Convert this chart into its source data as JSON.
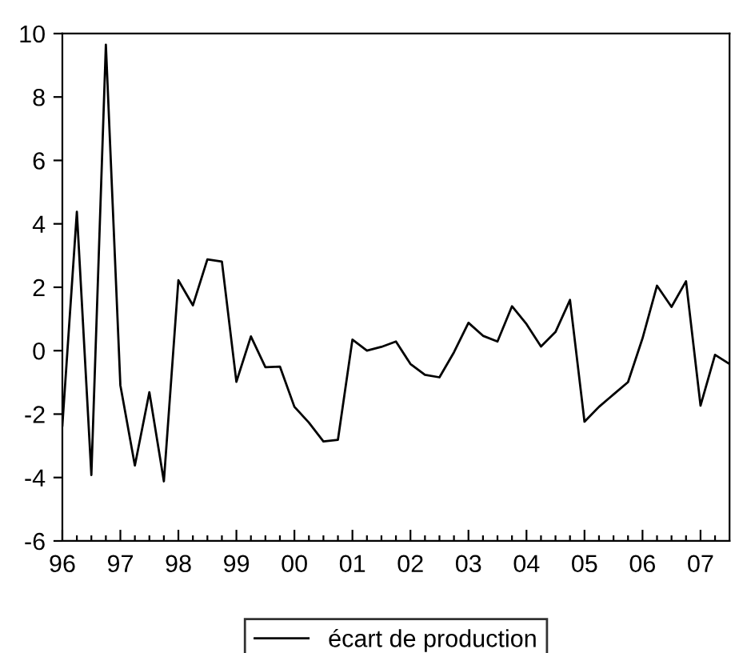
{
  "chart_data": {
    "type": "line",
    "x": [
      "1996-01",
      "1996-04",
      "1996-07",
      "1996-10",
      "1997-01",
      "1997-04",
      "1997-07",
      "1997-10",
      "1998-01",
      "1998-04",
      "1998-07",
      "1998-10",
      "1999-01",
      "1999-04",
      "1999-07",
      "1999-10",
      "2000-01",
      "2000-04",
      "2000-07",
      "2000-10",
      "2001-01",
      "2001-04",
      "2001-07",
      "2001-10",
      "2002-01",
      "2002-04",
      "2002-07",
      "2002-10",
      "2003-01",
      "2003-04",
      "2003-07",
      "2003-10",
      "2004-01",
      "2004-04",
      "2004-07",
      "2004-10",
      "2005-01",
      "2005-04",
      "2005-07",
      "2005-10",
      "2006-01",
      "2006-04",
      "2006-07",
      "2006-10",
      "2007-01",
      "2007-04",
      "2007-07"
    ],
    "series": [
      {
        "name": "écart de production",
        "color": "#000000",
        "values": [
          -2.36,
          4.38,
          -3.92,
          9.65,
          -1.09,
          -3.62,
          -1.31,
          -4.12,
          2.22,
          1.43,
          2.88,
          2.81,
          -0.98,
          0.45,
          -0.52,
          -0.5,
          -1.77,
          -2.27,
          -2.86,
          -2.81,
          0.35,
          0.0,
          0.12,
          0.29,
          -0.42,
          -0.76,
          -0.84,
          -0.05,
          0.88,
          0.47,
          0.29,
          1.4,
          0.84,
          0.13,
          0.59,
          1.6,
          -2.24,
          -1.77,
          -1.38,
          -0.99,
          0.39,
          2.05,
          1.38,
          2.19,
          -1.73,
          -0.13,
          -0.42
        ]
      }
    ],
    "xlim": [
      "1996-01",
      "2007-07"
    ],
    "xticks": [
      {
        "value": "1996-01",
        "label": "96"
      },
      {
        "value": "1996-04",
        "label": null
      },
      {
        "value": "1996-07",
        "label": null
      },
      {
        "value": "1996-10",
        "label": null
      },
      {
        "value": "1997-01",
        "label": "97"
      },
      {
        "value": "1997-04",
        "label": null
      },
      {
        "value": "1997-07",
        "label": null
      },
      {
        "value": "1997-10",
        "label": null
      },
      {
        "value": "1998-01",
        "label": "98"
      },
      {
        "value": "1998-04",
        "label": null
      },
      {
        "value": "1998-07",
        "label": null
      },
      {
        "value": "1998-10",
        "label": null
      },
      {
        "value": "1999-01",
        "label": "99"
      },
      {
        "value": "1999-04",
        "label": null
      },
      {
        "value": "1999-07",
        "label": null
      },
      {
        "value": "1999-10",
        "label": null
      },
      {
        "value": "2000-01",
        "label": "00"
      },
      {
        "value": "2000-04",
        "label": null
      },
      {
        "value": "2000-07",
        "label": null
      },
      {
        "value": "2000-10",
        "label": null
      },
      {
        "value": "2001-01",
        "label": "01"
      },
      {
        "value": "2001-04",
        "label": null
      },
      {
        "value": "2001-07",
        "label": null
      },
      {
        "value": "2001-10",
        "label": null
      },
      {
        "value": "2002-01",
        "label": "02"
      },
      {
        "value": "2002-04",
        "label": null
      },
      {
        "value": "2002-07",
        "label": null
      },
      {
        "value": "2002-10",
        "label": null
      },
      {
        "value": "2003-01",
        "label": "03"
      },
      {
        "value": "2003-04",
        "label": null
      },
      {
        "value": "2003-07",
        "label": null
      },
      {
        "value": "2003-10",
        "label": null
      },
      {
        "value": "2004-01",
        "label": "04"
      },
      {
        "value": "2004-04",
        "label": null
      },
      {
        "value": "2004-07",
        "label": null
      },
      {
        "value": "2004-10",
        "label": null
      },
      {
        "value": "2005-01",
        "label": "05"
      },
      {
        "value": "2005-04",
        "label": null
      },
      {
        "value": "2005-07",
        "label": null
      },
      {
        "value": "2005-10",
        "label": null
      },
      {
        "value": "2006-01",
        "label": "06"
      },
      {
        "value": "2006-04",
        "label": null
      },
      {
        "value": "2006-07",
        "label": null
      },
      {
        "value": "2006-10",
        "label": null
      },
      {
        "value": "2007-01",
        "label": "07"
      },
      {
        "value": "2007-04",
        "label": null
      }
    ],
    "ylim": [
      -6,
      10
    ],
    "yticks": [
      -6,
      -4,
      -2,
      0,
      2,
      4,
      6,
      8,
      10
    ],
    "legend": "bottom",
    "grid": false,
    "marker": "none",
    "line_style": "solid"
  }
}
